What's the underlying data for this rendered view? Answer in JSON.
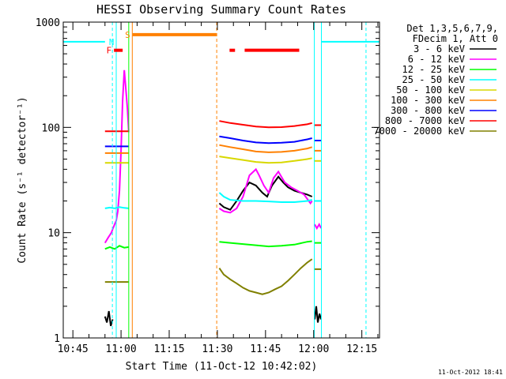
{
  "chart_data": {
    "type": "line",
    "title": "HESSI Observing Summary Count Rates",
    "xlabel": "Start Time (11-Oct-12 10:42:02)",
    "ylabel": "Count Rate (s⁻¹ detector⁻¹)",
    "x_unit": "minutes after 10:42:02",
    "xlim": [
      0,
      98.5
    ],
    "ylim": [
      1,
      1000
    ],
    "y_scale": "log",
    "x_ticks": [
      {
        "t": 3,
        "label": "10:45"
      },
      {
        "t": 18,
        "label": "11:00"
      },
      {
        "t": 33,
        "label": "11:15"
      },
      {
        "t": 48,
        "label": "11:30"
      },
      {
        "t": 63,
        "label": "11:45"
      },
      {
        "t": 78,
        "label": "12:00"
      },
      {
        "t": 93,
        "label": "12:15"
      }
    ],
    "y_ticks": [
      {
        "v": 1,
        "label": "1"
      },
      {
        "v": 10,
        "label": "10"
      },
      {
        "v": 100,
        "label": "100"
      },
      {
        "v": 1000,
        "label": "1000"
      }
    ],
    "legend_header": [
      "Det 1,3,5,6,7,9,",
      "FDecim 1, Att 0"
    ],
    "legend_position": "right",
    "series": [
      {
        "name": "3 - 6 keV",
        "color": "#000000",
        "segments": [
          {
            "x": [
              13.0,
              13.6,
              14.2,
              14.8,
              15.4
            ],
            "y": [
              1.6,
              1.4,
              1.8,
              1.3,
              1.5
            ]
          },
          {
            "x": [
              48.6,
              50.0,
              52.0,
              54.0,
              56.0,
              58.0,
              60.0,
              62.0,
              63.5,
              65.0,
              67.0,
              68.5,
              70.0,
              72.0,
              74.0,
              76.0,
              77.5
            ],
            "y": [
              19.0,
              17.5,
              16.5,
              20.0,
              25.0,
              30.0,
              28.0,
              24.0,
              22.0,
              28.0,
              34.0,
              30.0,
              27.0,
              25.0,
              24.0,
              23.0,
              22.0
            ]
          },
          {
            "x": [
              78.3,
              78.8,
              79.3,
              79.8,
              80.3
            ],
            "y": [
              1.5,
              2.0,
              1.4,
              1.7,
              1.5
            ]
          }
        ]
      },
      {
        "name": "6 - 12 keV",
        "color": "#ff00ff",
        "segments": [
          {
            "x": [
              13.0,
              14.0,
              15.0,
              15.5,
              16.0,
              16.5,
              17.0,
              17.5,
              18.0,
              18.5,
              19.0,
              19.5,
              20.0,
              20.4
            ],
            "y": [
              8.0,
              9.0,
              10.0,
              11.0,
              12.0,
              13.0,
              16.0,
              25.0,
              60.0,
              180.0,
              350.0,
              230.0,
              150.0,
              90.0
            ]
          },
          {
            "x": [
              48.6,
              50.0,
              52.0,
              54.0,
              56.0,
              58.0,
              60.0,
              61.0,
              62.5,
              64.0,
              65.5,
              67.0,
              69.0,
              71.0,
              73.0,
              75.0,
              77.0,
              77.5
            ],
            "y": [
              17.0,
              16.0,
              15.5,
              17.0,
              22.0,
              35.0,
              40.0,
              35.0,
              28.0,
              24.0,
              33.0,
              38.0,
              30.0,
              27.0,
              25.0,
              23.0,
              19.0,
              20.0
            ]
          },
          {
            "x": [
              78.3,
              79.0,
              79.7,
              80.3
            ],
            "y": [
              12.0,
              11.0,
              12.0,
              11.0
            ]
          }
        ]
      },
      {
        "name": "12 - 25 keV",
        "color": "#00ff00",
        "segments": [
          {
            "x": [
              13.0,
              14.5,
              16.0,
              17.5,
              19.0,
              20.4
            ],
            "y": [
              7.0,
              7.3,
              7.0,
              7.5,
              7.2,
              7.3
            ]
          },
          {
            "x": [
              48.6,
              52.0,
              56.0,
              60.0,
              64.0,
              68.0,
              72.0,
              76.0,
              77.5
            ],
            "y": [
              8.2,
              8.0,
              7.8,
              7.6,
              7.4,
              7.5,
              7.7,
              8.2,
              8.3
            ]
          },
          {
            "x": [
              78.3,
              80.3
            ],
            "y": [
              8.0,
              8.0
            ]
          }
        ]
      },
      {
        "name": "25 - 50 keV",
        "color": "#00ffff",
        "segments": [
          {
            "x": [
              0,
              13.0
            ],
            "y": [
              650.0,
              650.0
            ]
          },
          {
            "x": [
              13.0,
              14.5,
              16.0,
              17.5,
              19.0,
              20.4
            ],
            "y": [
              17.0,
              17.3,
              17.0,
              17.5,
              17.2,
              17.0
            ]
          },
          {
            "x": [
              48.6,
              50.0,
              52.0,
              56.0,
              60.0,
              64.0,
              68.0,
              72.0,
              76.0,
              77.5
            ],
            "y": [
              24.0,
              22.0,
              20.5,
              20.0,
              20.0,
              19.8,
              19.5,
              19.5,
              20.0,
              20.5
            ]
          },
          {
            "x": [
              78.3,
              80.3
            ],
            "y": [
              20.0,
              20.0
            ]
          },
          {
            "x": [
              80.3,
              98.5
            ],
            "y": [
              650.0,
              650.0
            ]
          }
        ]
      },
      {
        "name": "50 - 100 keV",
        "color": "#d8d800",
        "segments": [
          {
            "x": [
              13.0,
              20.4
            ],
            "y": [
              46.0,
              46.0
            ]
          },
          {
            "x": [
              48.6,
              52.0,
              56.0,
              60.0,
              64.0,
              68.0,
              72.0,
              76.0,
              77.5
            ],
            "y": [
              53.0,
              51.0,
              49.0,
              47.0,
              46.0,
              46.5,
              48.0,
              50.0,
              51.0
            ]
          },
          {
            "x": [
              78.3,
              80.3
            ],
            "y": [
              48.0,
              48.0
            ]
          }
        ]
      },
      {
        "name": "100 - 300 keV",
        "color": "#ff8000",
        "segments": [
          {
            "x": [
              13.0,
              20.4
            ],
            "y": [
              57.0,
              57.0
            ]
          },
          {
            "x": [
              48.6,
              52.0,
              56.0,
              60.0,
              64.0,
              68.0,
              72.0,
              76.0,
              77.5
            ],
            "y": [
              68.0,
              65.0,
              62.0,
              59.0,
              58.0,
              58.5,
              60.0,
              63.0,
              65.0
            ]
          },
          {
            "x": [
              78.3,
              80.3
            ],
            "y": [
              60.0,
              60.0
            ]
          }
        ]
      },
      {
        "name": "300 - 800 keV",
        "color": "#0000ff",
        "segments": [
          {
            "x": [
              13.0,
              20.4
            ],
            "y": [
              66.0,
              66.0
            ]
          },
          {
            "x": [
              48.6,
              52.0,
              56.0,
              60.0,
              64.0,
              68.0,
              72.0,
              76.0,
              77.5
            ],
            "y": [
              82.0,
              79.0,
              75.0,
              72.0,
              71.0,
              71.5,
              73.0,
              77.0,
              79.0
            ]
          },
          {
            "x": [
              78.3,
              80.3
            ],
            "y": [
              75.0,
              75.0
            ]
          }
        ]
      },
      {
        "name": "800 - 7000 keV",
        "color": "#ff0000",
        "segments": [
          {
            "x": [
              13.0,
              20.4
            ],
            "y": [
              92.0,
              92.0
            ]
          },
          {
            "x": [
              48.6,
              52.0,
              56.0,
              60.0,
              64.0,
              68.0,
              72.0,
              76.0,
              77.5
            ],
            "y": [
              115.0,
              110.0,
              106.0,
              102.0,
              100.0,
              100.5,
              103.0,
              107.0,
              110.0
            ]
          },
          {
            "x": [
              78.3,
              80.3
            ],
            "y": [
              105.0,
              105.0
            ]
          }
        ]
      },
      {
        "name": "7000 - 20000 keV",
        "color": "#808000",
        "segments": [
          {
            "x": [
              13.0,
              20.4
            ],
            "y": [
              3.4,
              3.4
            ]
          },
          {
            "x": [
              48.6,
              50.0,
              52.0,
              54.0,
              56.0,
              58.0,
              60.0,
              62.0,
              64.0,
              66.0,
              68.0,
              70.0,
              72.0,
              74.0,
              76.0,
              77.5
            ],
            "y": [
              4.6,
              4.0,
              3.6,
              3.3,
              3.0,
              2.8,
              2.7,
              2.6,
              2.7,
              2.9,
              3.1,
              3.5,
              4.0,
              4.6,
              5.2,
              5.6
            ]
          },
          {
            "x": [
              78.3,
              80.3
            ],
            "y": [
              4.5,
              4.5
            ]
          }
        ]
      }
    ],
    "vertical_lines": [
      {
        "t": 15.3,
        "color": "#00ffff",
        "style": "dashed"
      },
      {
        "t": 16.5,
        "color": "#00ffff",
        "style": "solid"
      },
      {
        "t": 20.4,
        "color": "#00ff00",
        "style": "solid"
      },
      {
        "t": 21.5,
        "color": "#ff8000",
        "style": "solid"
      },
      {
        "t": 47.8,
        "color": "#ff8000",
        "style": "dashed"
      },
      {
        "t": 78.2,
        "color": "#00ffff",
        "style": "solid"
      },
      {
        "t": 80.4,
        "color": "#00ffff",
        "style": "solid"
      },
      {
        "t": 94.3,
        "color": "#00ffff",
        "style": "dashed"
      }
    ],
    "flag_bars": [
      {
        "label": "S",
        "color": "#ff8000",
        "x0": 21.6,
        "x1": 47.7,
        "y": 760.0
      },
      {
        "label": "N",
        "color": "#00ffff",
        "x0": 16.6,
        "x1": 16.6,
        "y": 650.0
      },
      {
        "label": "F",
        "color": "#ff0000",
        "x0": 15.8,
        "x1": 18.5,
        "y": 540.0
      },
      {
        "label": "",
        "color": "#ff0000",
        "x0": 51.8,
        "x1": 53.5,
        "y": 540.0
      },
      {
        "label": "",
        "color": "#ff0000",
        "x0": 56.5,
        "x1": 73.5,
        "y": 540.0
      }
    ]
  },
  "footer_timestamp": "11-Oct-2012 18:41"
}
